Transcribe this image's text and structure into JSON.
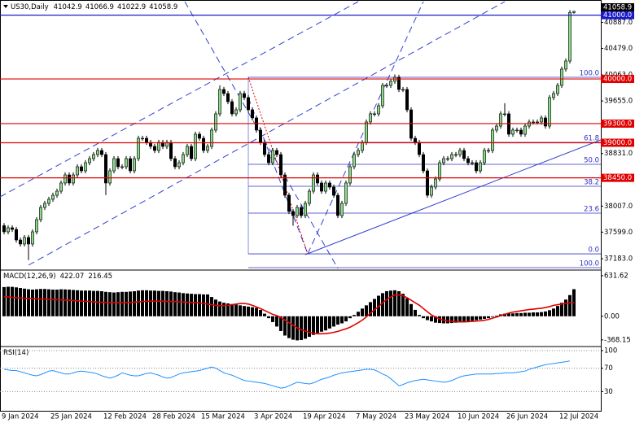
{
  "chart_data": [
    {
      "type": "candlestick",
      "symbol": "US30,Daily",
      "categories": [
        "9 Jan 2024",
        null,
        null,
        null,
        null,
        null,
        null,
        null,
        null,
        null,
        null,
        null,
        "25 Jan 2024",
        null,
        null,
        null,
        null,
        null,
        null,
        null,
        null,
        null,
        null,
        null,
        null,
        "12 Feb 2024",
        null,
        null,
        null,
        null,
        null,
        null,
        null,
        null,
        null,
        null,
        null,
        "28 Feb 2024",
        null,
        null,
        null,
        null,
        null,
        null,
        null,
        null,
        null,
        null,
        null,
        "15 Mar 2024",
        null,
        null,
        null,
        null,
        null,
        null,
        null,
        null,
        null,
        null,
        null,
        null,
        "3 Apr 2024",
        null,
        null,
        null,
        null,
        null,
        null,
        null,
        null,
        null,
        null,
        null,
        "19 Apr 2024",
        null,
        null,
        null,
        null,
        null,
        null,
        null,
        null,
        null,
        null,
        null,
        null,
        "7 May 2024",
        null,
        null,
        null,
        null,
        null,
        null,
        null,
        null,
        null,
        null,
        null,
        "23 May 2024",
        null,
        null,
        null,
        null,
        null,
        null,
        null,
        null,
        null,
        null,
        null,
        null,
        "10 Jun 2024",
        null,
        null,
        null,
        null,
        null,
        null,
        null,
        null,
        null,
        null,
        null,
        "26 Jun 2024",
        null,
        null,
        null,
        null,
        null,
        null,
        null,
        null,
        null,
        null,
        null,
        null,
        "12 Jul 2024",
        null,
        null,
        null
      ],
      "open": [
        37700,
        37604,
        37668,
        37642,
        37476,
        37413,
        37515,
        37413,
        37604,
        37795,
        37986,
        38050,
        38114,
        38177,
        38241,
        38369,
        38496,
        38369,
        38496,
        38624,
        38560,
        38687,
        38751,
        38815,
        38879,
        38815,
        38369,
        38560,
        38751,
        38624,
        38624,
        38751,
        38560,
        38751,
        39070,
        39070,
        39006,
        38943,
        38879,
        39006,
        38943,
        39006,
        38751,
        38624,
        38687,
        38815,
        38943,
        38751,
        39134,
        39070,
        38879,
        38943,
        39198,
        39453,
        39835,
        39771,
        39644,
        39453,
        39516,
        39771,
        39708,
        39516,
        39389,
        39198,
        39006,
        38815,
        38687,
        38879,
        38815,
        38496,
        38177,
        37923,
        37859,
        37986,
        37859,
        38050,
        38241,
        38496,
        38369,
        38241,
        38369,
        38305,
        38177,
        37859,
        38050,
        38369,
        38624,
        38815,
        38879,
        39006,
        39325,
        39453,
        39453,
        39580,
        39899,
        39899,
        39963,
        40026,
        39835,
        39835,
        39516,
        39070,
        39006,
        38815,
        38560,
        38177,
        38305,
        38432,
        38687,
        38751,
        38751,
        38815,
        38815,
        38879,
        38751,
        38687,
        38687,
        38560,
        38687,
        38879,
        38879,
        39198,
        39261,
        39453,
        39453,
        39134,
        39198,
        39198,
        39134,
        39261,
        39325,
        39325,
        39325,
        39389,
        39261,
        39708,
        39771,
        39899,
        40154,
        40281,
        41042.9
      ],
      "high": [
        37740,
        37708,
        37708,
        37682,
        37516,
        37555,
        37555,
        37644,
        37835,
        38026,
        38090,
        38154,
        38217,
        38281,
        38409,
        38536,
        38536,
        38536,
        38664,
        38664,
        38727,
        38791,
        38855,
        38919,
        38919,
        38855,
        38600,
        38791,
        38791,
        38664,
        38791,
        38791,
        38791,
        39110,
        39110,
        39110,
        39046,
        38983,
        39046,
        39046,
        39046,
        39046,
        38791,
        38727,
        38855,
        38983,
        38983,
        39174,
        39174,
        39110,
        38983,
        39238,
        39493,
        39900,
        39875,
        39811,
        39684,
        39556,
        39811,
        39811,
        39748,
        39556,
        39429,
        39238,
        39046,
        38855,
        38919,
        38919,
        38855,
        38536,
        38217,
        37963,
        38026,
        38026,
        38090,
        38281,
        38536,
        38536,
        38409,
        38409,
        38409,
        38345,
        38217,
        38090,
        38409,
        38664,
        38855,
        38919,
        39046,
        39365,
        39493,
        39493,
        39620,
        39939,
        39939,
        40003,
        40070,
        40066,
        39875,
        39875,
        39556,
        39110,
        39046,
        38855,
        38600,
        38345,
        38472,
        38727,
        38791,
        38791,
        38855,
        38855,
        38919,
        38919,
        38791,
        38727,
        38727,
        38727,
        38919,
        38919,
        39238,
        39301,
        39493,
        39620,
        39493,
        39238,
        39238,
        39238,
        39301,
        39365,
        39365,
        39365,
        39429,
        39429,
        39748,
        39811,
        39939,
        40194,
        40321,
        41080,
        41066.9
      ],
      "low": [
        37564,
        37564,
        37602,
        37436,
        37373,
        37373,
        37160,
        37373,
        37564,
        37755,
        37946,
        38010,
        38074,
        38137,
        38201,
        38329,
        38329,
        38329,
        38456,
        38520,
        38520,
        38647,
        38711,
        38775,
        38775,
        38180,
        38329,
        38520,
        38584,
        38584,
        38584,
        38520,
        38520,
        38711,
        39030,
        38966,
        38903,
        38839,
        38839,
        38903,
        38903,
        38711,
        38584,
        38584,
        38647,
        38775,
        38711,
        38711,
        39030,
        38839,
        38839,
        38903,
        39158,
        39413,
        39731,
        39604,
        39413,
        39413,
        39476,
        39668,
        39476,
        39349,
        39158,
        38966,
        38775,
        38647,
        38647,
        38775,
        38456,
        38137,
        37883,
        37700,
        37819,
        37819,
        37819,
        38010,
        38201,
        38329,
        38201,
        38201,
        38265,
        38137,
        37819,
        37819,
        38010,
        38329,
        38584,
        38775,
        38839,
        38966,
        39285,
        39413,
        39413,
        39540,
        39859,
        39859,
        39923,
        39795,
        39795,
        39476,
        39030,
        38966,
        38775,
        38520,
        38137,
        38137,
        38265,
        38392,
        38647,
        38711,
        38711,
        38775,
        38775,
        38711,
        38647,
        38647,
        38520,
        38520,
        38647,
        38839,
        38839,
        39158,
        39221,
        39413,
        39094,
        39094,
        39158,
        39094,
        39094,
        39221,
        39285,
        39285,
        39285,
        39221,
        39221,
        39668,
        39731,
        39859,
        40114,
        40241,
        41022.9
      ],
      "close": [
        37604,
        37668,
        37642,
        37476,
        37413,
        37515,
        37413,
        37604,
        37795,
        37986,
        38050,
        38114,
        38177,
        38241,
        38369,
        38496,
        38369,
        38496,
        38624,
        38560,
        38687,
        38751,
        38815,
        38879,
        38815,
        38369,
        38560,
        38751,
        38624,
        38624,
        38751,
        38560,
        38751,
        39070,
        39070,
        39006,
        38943,
        38879,
        39006,
        38943,
        39006,
        38751,
        38624,
        38687,
        38815,
        38943,
        38751,
        39134,
        39070,
        38879,
        38943,
        39198,
        39453,
        39835,
        39771,
        39644,
        39453,
        39516,
        39771,
        39708,
        39516,
        39389,
        39198,
        39006,
        38815,
        38687,
        38879,
        38815,
        38496,
        38177,
        37923,
        37859,
        37986,
        37859,
        38050,
        38241,
        38496,
        38369,
        38241,
        38369,
        38305,
        38177,
        37859,
        38050,
        38369,
        38624,
        38815,
        38879,
        39006,
        39325,
        39453,
        39453,
        39580,
        39899,
        39899,
        39963,
        40026,
        39835,
        39835,
        39516,
        39070,
        39006,
        38815,
        38560,
        38177,
        38305,
        38432,
        38687,
        38751,
        38751,
        38815,
        38815,
        38879,
        38751,
        38687,
        38687,
        38560,
        38687,
        38879,
        38879,
        39198,
        39261,
        39453,
        39453,
        39134,
        39198,
        39198,
        39134,
        39261,
        39325,
        39325,
        39325,
        39389,
        39261,
        39708,
        39771,
        39899,
        40154,
        40281,
        41040,
        41058.9
      ],
      "bull_color": "#8fd98f",
      "bear_color": "#000000",
      "ylim": [
        37030,
        41199
      ],
      "yticks": [
        {
          "value": 37183,
          "label": "37183.0"
        },
        {
          "value": 37599,
          "label": "37599.0"
        },
        {
          "value": 38007,
          "label": "38007.0"
        },
        {
          "value": 38831,
          "label": "38831.0"
        },
        {
          "value": 39655,
          "label": "39655.0"
        },
        {
          "value": 40063,
          "label": "40063.0"
        },
        {
          "value": 40479,
          "label": "40479.0"
        },
        {
          "value": 40887,
          "label": "40887.0"
        }
      ],
      "levels": [
        {
          "value": 41000,
          "label": "41000.0",
          "color": "#1a1acc"
        },
        {
          "value": 40000,
          "label": "40000.0",
          "color": "#e00000"
        },
        {
          "value": 39300,
          "label": "39300.0",
          "color": "#e00000"
        },
        {
          "value": 39000,
          "label": "39000.0",
          "color": "#e00000"
        },
        {
          "value": 38450,
          "label": "38450.0",
          "color": "#e00000"
        }
      ],
      "fib_levels": [
        {
          "value": 40026,
          "label": "100.0"
        },
        {
          "value": 39006,
          "label": "61.8"
        },
        {
          "value": 38662,
          "label": "50.0"
        },
        {
          "value": 38318,
          "label": "38.2"
        },
        {
          "value": 37897,
          "label": "23.6"
        },
        {
          "value": 37259,
          "label": "0.0"
        },
        {
          "value": 37043,
          "label": "100.0"
        }
      ],
      "fib_color": "#3030c0"
    },
    {
      "type": "macd",
      "title": "MACD(12,26,9)",
      "histogram": [
        455,
        460,
        458,
        450,
        440,
        430,
        420,
        415,
        420,
        425,
        425,
        420,
        415,
        415,
        420,
        418,
        415,
        410,
        405,
        400,
        400,
        400,
        395,
        395,
        390,
        380,
        375,
        370,
        375,
        380,
        380,
        385,
        390,
        400,
        405,
        405,
        400,
        400,
        395,
        395,
        390,
        385,
        375,
        370,
        360,
        355,
        350,
        345,
        345,
        340,
        340,
        300,
        260,
        230,
        210,
        200,
        190,
        180,
        170,
        160,
        150,
        140,
        130,
        100,
        40,
        -30,
        -90,
        -160,
        -230,
        -300,
        -340,
        -365,
        -375,
        -370,
        -350,
        -320,
        -290,
        -260,
        -240,
        -220,
        -190,
        -160,
        -130,
        -110,
        -80,
        -30,
        20,
        70,
        120,
        170,
        220,
        270,
        320,
        360,
        390,
        400,
        405,
        390,
        350,
        280,
        190,
        100,
        20,
        -30,
        -60,
        -80,
        -100,
        -105,
        -110,
        -110,
        -105,
        -100,
        -95,
        -90,
        -80,
        -70,
        -60,
        -50,
        -40,
        -30,
        -10,
        10,
        30,
        40,
        45,
        45,
        50,
        50,
        55,
        55,
        60,
        60,
        65,
        75,
        95,
        120,
        160,
        210,
        260,
        330,
        422.07
      ],
      "signal": [
        300,
        300,
        295,
        290,
        285,
        280,
        278,
        275,
        272,
        270,
        268,
        265,
        262,
        258,
        255,
        252,
        250,
        245,
        240,
        235,
        232,
        230,
        225,
        220,
        218,
        215,
        212,
        210,
        210,
        210,
        212,
        215,
        220,
        225,
        230,
        233,
        235,
        235,
        235,
        235,
        232,
        230,
        228,
        225,
        222,
        218,
        215,
        212,
        208,
        200,
        190,
        180,
        170,
        165,
        165,
        170,
        180,
        190,
        198,
        200,
        190,
        170,
        145,
        120,
        90,
        60,
        30,
        10,
        -20,
        -60,
        -100,
        -140,
        -180,
        -210,
        -230,
        -250,
        -265,
        -272,
        -272,
        -270,
        -262,
        -250,
        -235,
        -215,
        -195,
        -170,
        -136,
        -100,
        -60,
        -10,
        50,
        100,
        150,
        210,
        260,
        300,
        330,
        334,
        320,
        290,
        250,
        210,
        173,
        120,
        70,
        20,
        -12,
        -40,
        -60,
        -74,
        -80,
        -85,
        -87,
        -87,
        -85,
        -80,
        -75,
        -70,
        -62,
        -50,
        -30,
        -12,
        10,
        30,
        50,
        65,
        74,
        85,
        95,
        105,
        111,
        118,
        125,
        136,
        150,
        170,
        180,
        190,
        200,
        210,
        216.45
      ],
      "histogram_color": "#000000",
      "signal_color": "#e00000",
      "ylim": [
        -446,
        694
      ],
      "yticks": [
        631.62,
        {
          "value": 0,
          "label": "0.00"
        },
        -368.15
      ]
    },
    {
      "type": "rsi",
      "title": "RSI(14)",
      "values": [
        68,
        67,
        66,
        66,
        64,
        62,
        60,
        58,
        57,
        59,
        62,
        65,
        66,
        64,
        62,
        60,
        60,
        62,
        64,
        65,
        64,
        63,
        62,
        60,
        57,
        55,
        53,
        55,
        58,
        62,
        60,
        58,
        57,
        57,
        59,
        61,
        62,
        60,
        58,
        55,
        53,
        54,
        57,
        60,
        62,
        63,
        64,
        65,
        66,
        68,
        70,
        72,
        70,
        66,
        62,
        60,
        58,
        55,
        52,
        49,
        48,
        47,
        46,
        45,
        44,
        42,
        40,
        38,
        36,
        37,
        40,
        43,
        46,
        45,
        44,
        43,
        45,
        48,
        51,
        53,
        55,
        58,
        60,
        62,
        63,
        64,
        65,
        66,
        67,
        68,
        68,
        67,
        64,
        60,
        57,
        52,
        46,
        40,
        42,
        45,
        47,
        49,
        50,
        51,
        50,
        49,
        48,
        47,
        46,
        47,
        49,
        52,
        55,
        57,
        58,
        59,
        60,
        60,
        60,
        60,
        60,
        61,
        61,
        62,
        62,
        62,
        63,
        64,
        65,
        68,
        70,
        72,
        74,
        76,
        77,
        78,
        79,
        80,
        81,
        82.3439
      ],
      "color": "#1e90ff",
      "ylim": [
        0,
        100
      ],
      "yticks": [
        30,
        70,
        100
      ],
      "grid": true
    }
  ]
}
